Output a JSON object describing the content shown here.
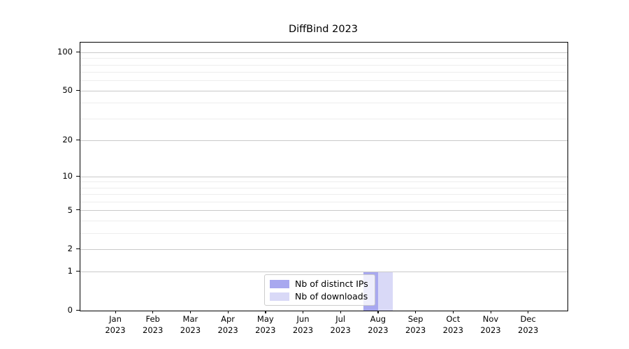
{
  "chart_data": {
    "type": "bar",
    "title": "DiffBind 2023",
    "categories": [
      "Jan 2023",
      "Feb 2023",
      "Mar 2023",
      "Apr 2023",
      "May 2023",
      "Jun 2023",
      "Jul 2023",
      "Aug 2023",
      "Sep 2023",
      "Oct 2023",
      "Nov 2023",
      "Dec 2023"
    ],
    "series": [
      {
        "name": "Nb of distinct IPs",
        "color": "#a8a8ef",
        "values": [
          0,
          0,
          0,
          0,
          0,
          0,
          0,
          1,
          0,
          0,
          0,
          0
        ]
      },
      {
        "name": "Nb of downloads",
        "color": "#d9d9f7",
        "values": [
          0,
          0,
          0,
          0,
          0,
          0,
          0,
          1,
          0,
          0,
          0,
          0
        ]
      }
    ],
    "xlabel": "",
    "ylabel": "",
    "yscale": "log1p",
    "ylim": [
      0,
      120
    ],
    "y_major_ticks": [
      0,
      1,
      2,
      5,
      10,
      20,
      50,
      100
    ],
    "y_minor_ticks": [
      3,
      4,
      6,
      7,
      8,
      9,
      30,
      40,
      60,
      70,
      80,
      90
    ],
    "grid": "both",
    "legend_position": "lower center"
  },
  "colors": {
    "background": "#ffffff",
    "axis": "#000000",
    "grid_major": "#c9c9c9",
    "grid_minor": "#ededed",
    "legend_border": "#cccccc"
  }
}
